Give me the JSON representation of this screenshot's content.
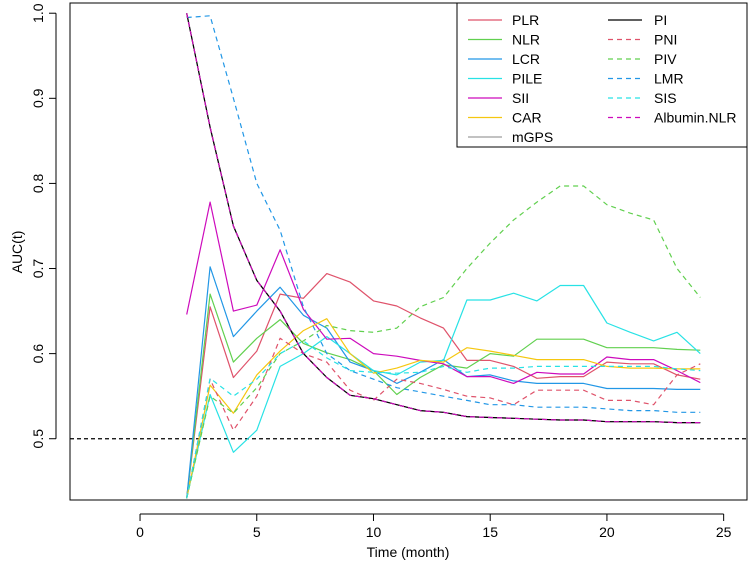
{
  "chart_data": {
    "type": "line",
    "title": "",
    "xlabel": "Time (month)",
    "ylabel": "AUC(t)",
    "xlim": [
      -3,
      26
    ],
    "ylim": [
      0.428,
      1.012
    ],
    "xticks": [
      0,
      5,
      10,
      15,
      20,
      25
    ],
    "yticks": [
      0.5,
      0.6,
      0.7,
      0.8,
      0.9,
      1.0
    ],
    "ytick_labels": [
      "0.5",
      "0.6",
      "0.7",
      "0.8",
      "0.9",
      "1.0"
    ],
    "reference_line": {
      "y": 0.5,
      "style": "dotted",
      "color": "#000000"
    },
    "legend_position": "top-right",
    "x": [
      2,
      3,
      4,
      5,
      6,
      7,
      8,
      9,
      10,
      11,
      12,
      13,
      14,
      15,
      16,
      17,
      18,
      19,
      20,
      21,
      22,
      23,
      24
    ],
    "series": [
      {
        "name": "PLR",
        "color": "#DF536B",
        "dash": "solid",
        "values": [
          0.43,
          0.655,
          0.572,
          0.603,
          0.67,
          0.665,
          0.694,
          0.684,
          0.662,
          0.656,
          0.642,
          0.63,
          0.592,
          0.592,
          0.585,
          0.571,
          0.573,
          0.573,
          0.59,
          0.588,
          0.588,
          0.575,
          0.57
        ]
      },
      {
        "name": "NLR",
        "color": "#61D04F",
        "dash": "solid",
        "values": [
          0.43,
          0.67,
          0.59,
          0.618,
          0.64,
          0.612,
          0.601,
          0.593,
          0.58,
          0.552,
          0.572,
          0.587,
          0.583,
          0.6,
          0.597,
          0.617,
          0.617,
          0.617,
          0.607,
          0.607,
          0.607,
          0.605,
          0.604
        ]
      },
      {
        "name": "LCR",
        "color": "#2297E6",
        "dash": "solid",
        "values": [
          0.43,
          0.702,
          0.62,
          0.65,
          0.678,
          0.645,
          0.63,
          0.59,
          0.58,
          0.565,
          0.578,
          0.593,
          0.573,
          0.575,
          0.568,
          0.565,
          0.565,
          0.565,
          0.559,
          0.559,
          0.559,
          0.558,
          0.558
        ]
      },
      {
        "name": "PILE",
        "color": "#28E2E5",
        "dash": "solid",
        "values": [
          0.43,
          0.552,
          0.484,
          0.51,
          0.585,
          0.6,
          0.62,
          0.6,
          0.58,
          0.575,
          0.59,
          0.592,
          0.663,
          0.663,
          0.671,
          0.662,
          0.68,
          0.68,
          0.636,
          0.625,
          0.615,
          0.625,
          0.6
        ]
      },
      {
        "name": "SII",
        "color": "#CD0BBC",
        "dash": "solid",
        "values": [
          0.646,
          0.778,
          0.65,
          0.657,
          0.722,
          0.652,
          0.617,
          0.618,
          0.6,
          0.597,
          0.592,
          0.588,
          0.573,
          0.573,
          0.565,
          0.578,
          0.576,
          0.576,
          0.596,
          0.593,
          0.593,
          0.58,
          0.566
        ]
      },
      {
        "name": "CAR",
        "color": "#F5C710",
        "dash": "solid",
        "values": [
          0.43,
          0.563,
          0.53,
          0.575,
          0.603,
          0.627,
          0.641,
          0.6,
          0.577,
          0.583,
          0.592,
          0.59,
          0.607,
          0.603,
          0.598,
          0.593,
          0.593,
          0.593,
          0.585,
          0.583,
          0.583,
          0.582,
          0.582
        ]
      },
      {
        "name": "mGPS",
        "color": "#9E9E9E",
        "dash": "solid",
        "values": [
          1.0,
          0.866,
          0.75,
          0.686,
          0.65,
          0.6,
          0.572,
          0.551,
          0.547,
          0.54,
          0.533,
          0.531,
          0.526,
          0.525,
          0.524,
          0.523,
          0.522,
          0.522,
          0.52,
          0.52,
          0.52,
          0.519,
          0.519
        ]
      },
      {
        "name": "PI",
        "color": "#000000",
        "dash": "solid",
        "values": [
          1.0,
          0.866,
          0.75,
          0.686,
          0.65,
          0.6,
          0.572,
          0.551,
          0.547,
          0.54,
          0.533,
          0.531,
          0.526,
          0.525,
          0.524,
          0.523,
          0.522,
          0.522,
          0.52,
          0.52,
          0.52,
          0.519,
          0.519
        ]
      },
      {
        "name": "PNI",
        "color": "#DF536B",
        "dash": "dashed",
        "values": [
          0.43,
          0.57,
          0.51,
          0.55,
          0.618,
          0.6,
          0.59,
          0.557,
          0.545,
          0.57,
          0.565,
          0.558,
          0.55,
          0.548,
          0.54,
          0.557,
          0.557,
          0.557,
          0.545,
          0.545,
          0.54,
          0.575,
          0.588
        ]
      },
      {
        "name": "PIV",
        "color": "#61D04F",
        "dash": "dashed",
        "values": [
          0.43,
          0.55,
          0.53,
          0.56,
          0.6,
          0.615,
          0.633,
          0.627,
          0.625,
          0.63,
          0.655,
          0.666,
          0.7,
          0.73,
          0.757,
          0.778,
          0.797,
          0.797,
          0.775,
          0.765,
          0.757,
          0.7,
          0.666
        ]
      },
      {
        "name": "LMR",
        "color": "#2297E6",
        "dash": "dashed",
        "values": [
          0.995,
          0.997,
          0.9,
          0.8,
          0.745,
          0.655,
          0.6,
          0.58,
          0.57,
          0.56,
          0.555,
          0.55,
          0.545,
          0.54,
          0.54,
          0.537,
          0.537,
          0.537,
          0.535,
          0.533,
          0.533,
          0.531,
          0.531
        ]
      },
      {
        "name": "SIS",
        "color": "#28E2E5",
        "dash": "dashed",
        "values": [
          0.43,
          0.571,
          0.55,
          0.57,
          0.6,
          0.615,
          0.595,
          0.58,
          0.578,
          0.577,
          0.578,
          0.585,
          0.578,
          0.583,
          0.583,
          0.585,
          0.585,
          0.585,
          0.585,
          0.585,
          0.585,
          0.582,
          0.58
        ]
      },
      {
        "name": "Albumin.NLR",
        "color": "#CD0BBC",
        "dash": "dashed",
        "values": [
          1.0,
          0.866,
          0.75,
          0.686,
          0.65,
          0.6,
          0.572,
          0.551,
          0.547,
          0.54,
          0.533,
          0.531,
          0.526,
          0.525,
          0.524,
          0.523,
          0.522,
          0.522,
          0.52,
          0.52,
          0.52,
          0.519,
          0.519
        ]
      }
    ]
  }
}
